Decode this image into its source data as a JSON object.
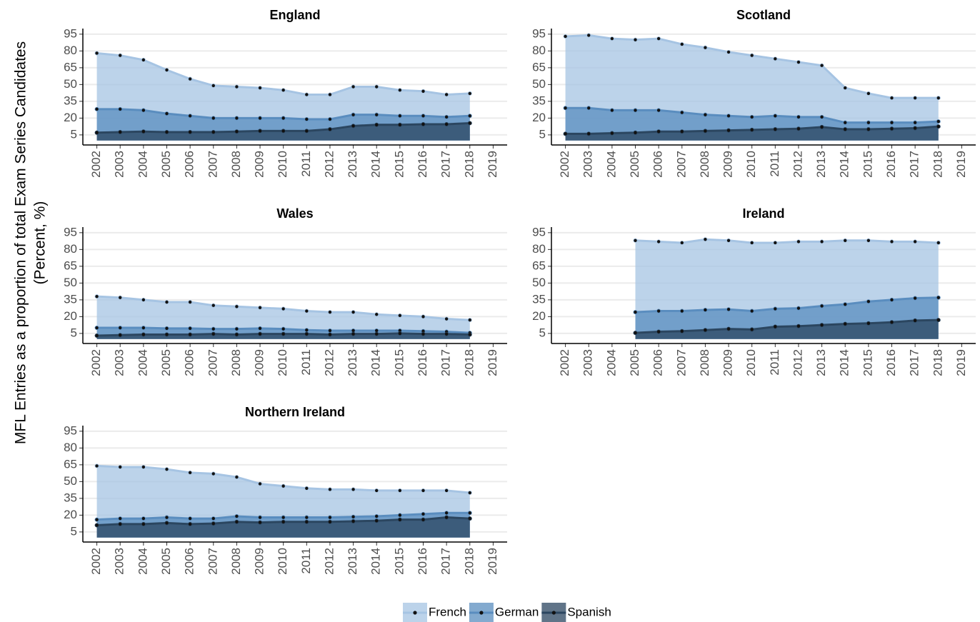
{
  "ylabel": [
    "MFL Entries as a proportion of total Exam Series Candidates",
    "(Percent, %)"
  ],
  "chart_data": [
    {
      "type": "area",
      "title": "England",
      "x": [
        2002,
        2003,
        2004,
        2005,
        2006,
        2007,
        2008,
        2009,
        2010,
        2011,
        2012,
        2013,
        2014,
        2015,
        2016,
        2017,
        2018
      ],
      "series": [
        {
          "name": "French",
          "color": "#a6c4e3",
          "values": [
            78,
            76,
            72,
            63,
            55,
            49,
            48,
            47,
            45,
            41,
            41,
            48,
            48,
            45,
            44,
            41,
            42
          ]
        },
        {
          "name": "German",
          "color": "#5a8dbf",
          "values": [
            28,
            28,
            27,
            24,
            22,
            20,
            20,
            20,
            20,
            19,
            19,
            23,
            23,
            22,
            22,
            21,
            22
          ]
        },
        {
          "name": "Spanish",
          "color": "#2b4660",
          "values": [
            7,
            7.5,
            8,
            7.5,
            7.5,
            7.5,
            8,
            8.5,
            8.5,
            8.5,
            10,
            13,
            14,
            14,
            14.5,
            14.5,
            15.5
          ]
        }
      ],
      "xlim": [
        2001.4,
        2019.6
      ],
      "xticks": [
        2002,
        2003,
        2004,
        2005,
        2006,
        2007,
        2008,
        2009,
        2010,
        2011,
        2012,
        2013,
        2014,
        2015,
        2016,
        2017,
        2018,
        2019
      ],
      "ylim": [
        -4,
        100
      ],
      "yticks": [
        5,
        20,
        35,
        50,
        65,
        80,
        95
      ],
      "grid": true
    },
    {
      "type": "area",
      "title": "Scotland",
      "x": [
        2002,
        2003,
        2004,
        2005,
        2006,
        2007,
        2008,
        2009,
        2010,
        2011,
        2012,
        2013,
        2014,
        2015,
        2016,
        2017,
        2018
      ],
      "series": [
        {
          "name": "French",
          "color": "#a6c4e3",
          "values": [
            93,
            94,
            91,
            90,
            91,
            86,
            83,
            79,
            76,
            73,
            70,
            67,
            47,
            42,
            38,
            38,
            38
          ]
        },
        {
          "name": "German",
          "color": "#5a8dbf",
          "values": [
            29,
            29,
            27,
            27,
            27,
            25,
            23,
            22,
            21,
            22,
            21,
            21,
            16,
            16,
            16,
            16,
            17
          ]
        },
        {
          "name": "Spanish",
          "color": "#2b4660",
          "values": [
            6,
            6,
            6.5,
            7,
            8,
            8,
            8.5,
            9,
            9.5,
            10,
            10.5,
            12,
            10,
            10,
            10.5,
            11,
            12.5
          ]
        }
      ],
      "xlim": [
        2001.4,
        2019.6
      ],
      "xticks": [
        2002,
        2003,
        2004,
        2005,
        2006,
        2007,
        2008,
        2009,
        2010,
        2011,
        2012,
        2013,
        2014,
        2015,
        2016,
        2017,
        2018,
        2019
      ],
      "ylim": [
        -4,
        100
      ],
      "yticks": [
        5,
        20,
        35,
        50,
        65,
        80,
        95
      ],
      "grid": true
    },
    {
      "type": "area",
      "title": "Wales",
      "x": [
        2002,
        2003,
        2004,
        2005,
        2006,
        2007,
        2008,
        2009,
        2010,
        2011,
        2012,
        2013,
        2014,
        2015,
        2016,
        2017,
        2018
      ],
      "series": [
        {
          "name": "French",
          "color": "#a6c4e3",
          "values": [
            38,
            37,
            35,
            33,
            33,
            30,
            29,
            28,
            27,
            25,
            24,
            24,
            22,
            21,
            20,
            18,
            17
          ]
        },
        {
          "name": "German",
          "color": "#5a8dbf",
          "values": [
            10,
            10,
            10,
            9.5,
            9.5,
            9,
            9,
            9.5,
            9,
            8,
            7.5,
            7.5,
            7.5,
            7.5,
            7,
            6.5,
            5.5
          ]
        },
        {
          "name": "Spanish",
          "color": "#2b4660",
          "values": [
            3,
            3.5,
            4,
            4,
            4,
            4.5,
            4,
            4.5,
            4.5,
            4.5,
            4,
            4.5,
            4.5,
            5,
            4.5,
            4.5,
            4
          ]
        }
      ],
      "xlim": [
        2001.4,
        2019.6
      ],
      "xticks": [
        2002,
        2003,
        2004,
        2005,
        2006,
        2007,
        2008,
        2009,
        2010,
        2011,
        2012,
        2013,
        2014,
        2015,
        2016,
        2017,
        2018,
        2019
      ],
      "ylim": [
        -4,
        100
      ],
      "yticks": [
        5,
        20,
        35,
        50,
        65,
        80,
        95
      ],
      "grid": true
    },
    {
      "type": "area",
      "title": "Ireland",
      "x": [
        2002,
        2003,
        2004,
        2005,
        2006,
        2007,
        2008,
        2009,
        2010,
        2011,
        2012,
        2013,
        2014,
        2015,
        2016,
        2017,
        2018
      ],
      "series": [
        {
          "name": "French",
          "color": "#a6c4e3",
          "values": [
            null,
            null,
            null,
            88,
            87,
            86,
            89,
            88,
            86,
            86,
            87,
            87,
            88,
            88,
            87,
            87,
            86
          ]
        },
        {
          "name": "German",
          "color": "#5a8dbf",
          "values": [
            null,
            null,
            null,
            24,
            25,
            25,
            26,
            26.5,
            25,
            27,
            27.5,
            29.5,
            31,
            33.5,
            35,
            36.5,
            37
          ]
        },
        {
          "name": "Spanish",
          "color": "#2b4660",
          "values": [
            null,
            null,
            null,
            5.5,
            6.5,
            7,
            8,
            9,
            8.5,
            11,
            11.5,
            12.5,
            13.5,
            14,
            15,
            16.5,
            17
          ]
        }
      ],
      "xlim": [
        2001.4,
        2019.6
      ],
      "xticks": [
        2002,
        2003,
        2004,
        2005,
        2006,
        2007,
        2008,
        2009,
        2010,
        2011,
        2012,
        2013,
        2014,
        2015,
        2016,
        2017,
        2018,
        2019
      ],
      "ylim": [
        -4,
        100
      ],
      "yticks": [
        5,
        20,
        35,
        50,
        65,
        80,
        95
      ],
      "grid": true
    },
    {
      "type": "area",
      "title": "Northern Ireland",
      "x": [
        2002,
        2003,
        2004,
        2005,
        2006,
        2007,
        2008,
        2009,
        2010,
        2011,
        2012,
        2013,
        2014,
        2015,
        2016,
        2017,
        2018
      ],
      "series": [
        {
          "name": "French",
          "color": "#a6c4e3",
          "values": [
            64,
            63,
            63,
            61,
            58,
            57,
            54,
            48,
            46,
            44,
            43,
            43,
            42,
            42,
            42,
            42,
            40
          ]
        },
        {
          "name": "German",
          "color": "#5a8dbf",
          "values": [
            16,
            17,
            17,
            18,
            17,
            17,
            19,
            18,
            18,
            18,
            18,
            18.5,
            19,
            20,
            21,
            22,
            22
          ]
        },
        {
          "name": "Spanish",
          "color": "#2b4660",
          "values": [
            11,
            12,
            12,
            13,
            12,
            12.5,
            14,
            13.5,
            14,
            14,
            14,
            14.5,
            15,
            16,
            16,
            18,
            17
          ]
        }
      ],
      "xlim": [
        2001.4,
        2019.6
      ],
      "xticks": [
        2002,
        2003,
        2004,
        2005,
        2006,
        2007,
        2008,
        2009,
        2010,
        2011,
        2012,
        2013,
        2014,
        2015,
        2016,
        2017,
        2018,
        2019
      ],
      "ylim": [
        -4,
        100
      ],
      "yticks": [
        5,
        20,
        35,
        50,
        65,
        80,
        95
      ],
      "grid": true
    }
  ]
}
